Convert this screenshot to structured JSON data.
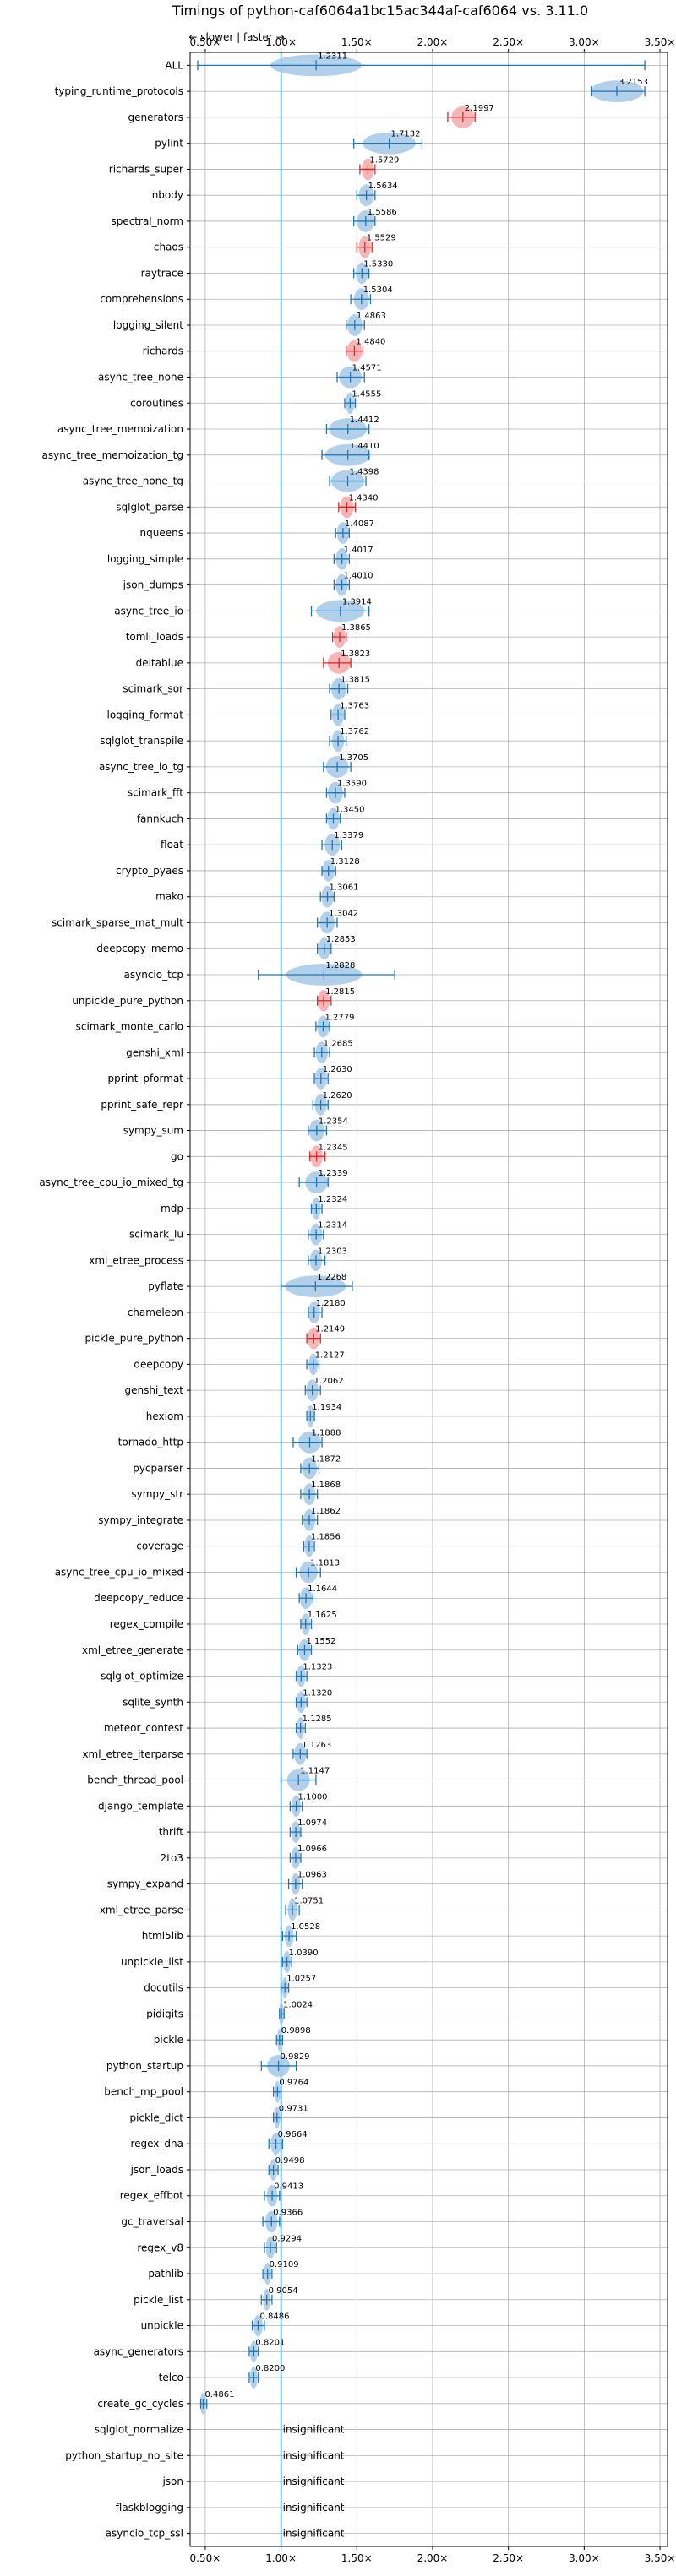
{
  "chart_data": {
    "type": "violin",
    "title": "Timings of python-caf6064a1bc15ac344af-caf6064 vs. 3.11.0",
    "annotation": "← slower | faster →",
    "xlim": [
      0.4,
      3.55
    ],
    "x_ticks": [
      0.5,
      1.0,
      1.5,
      2.0,
      2.5,
      3.0,
      3.5
    ],
    "x_tick_labels": [
      "0.50×",
      "1.00×",
      "1.50×",
      "2.00×",
      "2.50×",
      "3.00×",
      "3.50×"
    ],
    "reference_line": 1.0,
    "grid": true,
    "colors": {
      "faster": "#1f77b4",
      "faster_fill": "#a6c8e8",
      "slower": "#d62728",
      "slower_fill": "#f4a9aa"
    },
    "insignificant_label": "insignificant",
    "benchmarks": [
      {
        "name": "ALL",
        "value": 1.2311,
        "min": 0.45,
        "max": 3.4,
        "spread": 0.6,
        "color": "faster"
      },
      {
        "name": "typing_runtime_protocols",
        "value": 3.2153,
        "min": 3.05,
        "max": 3.4,
        "spread": 0.35,
        "color": "faster"
      },
      {
        "name": "generators",
        "value": 2.1997,
        "min": 2.1,
        "max": 2.28,
        "spread": 0.15,
        "color": "slower"
      },
      {
        "name": "pylint",
        "value": 1.7132,
        "min": 1.48,
        "max": 1.93,
        "spread": 0.35,
        "color": "faster"
      },
      {
        "name": "richards_super",
        "value": 1.5729,
        "min": 1.52,
        "max": 1.62,
        "spread": 0.08,
        "color": "slower"
      },
      {
        "name": "nbody",
        "value": 1.5634,
        "min": 1.5,
        "max": 1.62,
        "spread": 0.1,
        "color": "faster"
      },
      {
        "name": "spectral_norm",
        "value": 1.5586,
        "min": 1.48,
        "max": 1.62,
        "spread": 0.12,
        "color": "faster"
      },
      {
        "name": "chaos",
        "value": 1.5529,
        "min": 1.5,
        "max": 1.6,
        "spread": 0.08,
        "color": "slower"
      },
      {
        "name": "raytrace",
        "value": 1.533,
        "min": 1.48,
        "max": 1.58,
        "spread": 0.08,
        "color": "faster"
      },
      {
        "name": "comprehensions",
        "value": 1.5304,
        "min": 1.46,
        "max": 1.59,
        "spread": 0.1,
        "color": "faster"
      },
      {
        "name": "logging_silent",
        "value": 1.4863,
        "min": 1.43,
        "max": 1.55,
        "spread": 0.1,
        "color": "faster"
      },
      {
        "name": "richards",
        "value": 1.484,
        "min": 1.43,
        "max": 1.54,
        "spread": 0.1,
        "color": "slower"
      },
      {
        "name": "async_tree_none",
        "value": 1.4571,
        "min": 1.37,
        "max": 1.55,
        "spread": 0.15,
        "color": "faster"
      },
      {
        "name": "coroutines",
        "value": 1.4555,
        "min": 1.42,
        "max": 1.49,
        "spread": 0.06,
        "color": "faster"
      },
      {
        "name": "async_tree_memoization",
        "value": 1.4412,
        "min": 1.3,
        "max": 1.58,
        "spread": 0.25,
        "color": "faster"
      },
      {
        "name": "async_tree_memoization_tg",
        "value": 1.441,
        "min": 1.27,
        "max": 1.58,
        "spread": 0.3,
        "color": "faster"
      },
      {
        "name": "async_tree_none_tg",
        "value": 1.4398,
        "min": 1.32,
        "max": 1.56,
        "spread": 0.22,
        "color": "faster"
      },
      {
        "name": "sqlglot_parse",
        "value": 1.434,
        "min": 1.38,
        "max": 1.49,
        "spread": 0.09,
        "color": "slower"
      },
      {
        "name": "nqueens",
        "value": 1.4087,
        "min": 1.36,
        "max": 1.45,
        "spread": 0.08,
        "color": "faster"
      },
      {
        "name": "logging_simple",
        "value": 1.4017,
        "min": 1.35,
        "max": 1.45,
        "spread": 0.08,
        "color": "faster"
      },
      {
        "name": "json_dumps",
        "value": 1.401,
        "min": 1.35,
        "max": 1.45,
        "spread": 0.08,
        "color": "faster"
      },
      {
        "name": "async_tree_io",
        "value": 1.3914,
        "min": 1.2,
        "max": 1.58,
        "spread": 0.32,
        "color": "faster"
      },
      {
        "name": "tomli_loads",
        "value": 1.3865,
        "min": 1.34,
        "max": 1.43,
        "spread": 0.08,
        "color": "slower"
      },
      {
        "name": "deltablue",
        "value": 1.3823,
        "min": 1.28,
        "max": 1.46,
        "spread": 0.15,
        "color": "slower"
      },
      {
        "name": "scimark_sor",
        "value": 1.3815,
        "min": 1.32,
        "max": 1.44,
        "spread": 0.1,
        "color": "faster"
      },
      {
        "name": "logging_format",
        "value": 1.3763,
        "min": 1.33,
        "max": 1.42,
        "spread": 0.08,
        "color": "faster"
      },
      {
        "name": "sqlglot_transpile",
        "value": 1.3762,
        "min": 1.32,
        "max": 1.43,
        "spread": 0.08,
        "color": "faster"
      },
      {
        "name": "async_tree_io_tg",
        "value": 1.3705,
        "min": 1.28,
        "max": 1.46,
        "spread": 0.15,
        "color": "faster"
      },
      {
        "name": "scimark_fft",
        "value": 1.359,
        "min": 1.3,
        "max": 1.42,
        "spread": 0.1,
        "color": "faster"
      },
      {
        "name": "fannkuch",
        "value": 1.345,
        "min": 1.3,
        "max": 1.39,
        "spread": 0.08,
        "color": "faster"
      },
      {
        "name": "float",
        "value": 1.3379,
        "min": 1.27,
        "max": 1.4,
        "spread": 0.1,
        "color": "faster"
      },
      {
        "name": "crypto_pyaes",
        "value": 1.3128,
        "min": 1.27,
        "max": 1.36,
        "spread": 0.08,
        "color": "faster"
      },
      {
        "name": "mako",
        "value": 1.3061,
        "min": 1.26,
        "max": 1.35,
        "spread": 0.08,
        "color": "faster"
      },
      {
        "name": "scimark_sparse_mat_mult",
        "value": 1.3042,
        "min": 1.24,
        "max": 1.37,
        "spread": 0.1,
        "color": "faster"
      },
      {
        "name": "deepcopy_memo",
        "value": 1.2853,
        "min": 1.24,
        "max": 1.33,
        "spread": 0.08,
        "color": "faster"
      },
      {
        "name": "asyncio_tcp",
        "value": 1.2828,
        "min": 0.85,
        "max": 1.75,
        "spread": 0.5,
        "color": "faster"
      },
      {
        "name": "unpickle_pure_python",
        "value": 1.2815,
        "min": 1.24,
        "max": 1.33,
        "spread": 0.08,
        "color": "slower"
      },
      {
        "name": "scimark_monte_carlo",
        "value": 1.2779,
        "min": 1.23,
        "max": 1.32,
        "spread": 0.08,
        "color": "faster"
      },
      {
        "name": "genshi_xml",
        "value": 1.2685,
        "min": 1.22,
        "max": 1.32,
        "spread": 0.08,
        "color": "faster"
      },
      {
        "name": "pprint_pformat",
        "value": 1.263,
        "min": 1.22,
        "max": 1.31,
        "spread": 0.08,
        "color": "faster"
      },
      {
        "name": "pprint_safe_repr",
        "value": 1.262,
        "min": 1.21,
        "max": 1.31,
        "spread": 0.08,
        "color": "faster"
      },
      {
        "name": "sympy_sum",
        "value": 1.2354,
        "min": 1.18,
        "max": 1.3,
        "spread": 0.1,
        "color": "faster"
      },
      {
        "name": "go",
        "value": 1.2345,
        "min": 1.19,
        "max": 1.29,
        "spread": 0.08,
        "color": "slower"
      },
      {
        "name": "async_tree_cpu_io_mixed_tg",
        "value": 1.2339,
        "min": 1.12,
        "max": 1.31,
        "spread": 0.15,
        "color": "faster"
      },
      {
        "name": "mdp",
        "value": 1.2324,
        "min": 1.2,
        "max": 1.27,
        "spread": 0.06,
        "color": "faster"
      },
      {
        "name": "scimark_lu",
        "value": 1.2314,
        "min": 1.18,
        "max": 1.28,
        "spread": 0.08,
        "color": "faster"
      },
      {
        "name": "xml_etree_process",
        "value": 1.2303,
        "min": 1.18,
        "max": 1.29,
        "spread": 0.08,
        "color": "faster"
      },
      {
        "name": "pyflate",
        "value": 1.2268,
        "min": 1.0,
        "max": 1.47,
        "spread": 0.4,
        "color": "faster"
      },
      {
        "name": "chameleon",
        "value": 1.218,
        "min": 1.18,
        "max": 1.27,
        "spread": 0.08,
        "color": "faster"
      },
      {
        "name": "pickle_pure_python",
        "value": 1.2149,
        "min": 1.17,
        "max": 1.26,
        "spread": 0.08,
        "color": "slower"
      },
      {
        "name": "deepcopy",
        "value": 1.2127,
        "min": 1.17,
        "max": 1.25,
        "spread": 0.06,
        "color": "faster"
      },
      {
        "name": "genshi_text",
        "value": 1.2062,
        "min": 1.16,
        "max": 1.26,
        "spread": 0.08,
        "color": "faster"
      },
      {
        "name": "hexiom",
        "value": 1.1934,
        "min": 1.17,
        "max": 1.22,
        "spread": 0.05,
        "color": "faster"
      },
      {
        "name": "tornado_http",
        "value": 1.1888,
        "min": 1.08,
        "max": 1.27,
        "spread": 0.15,
        "color": "faster"
      },
      {
        "name": "pycparser",
        "value": 1.1872,
        "min": 1.13,
        "max": 1.25,
        "spread": 0.1,
        "color": "faster"
      },
      {
        "name": "sympy_str",
        "value": 1.1868,
        "min": 1.13,
        "max": 1.24,
        "spread": 0.08,
        "color": "faster"
      },
      {
        "name": "sympy_integrate",
        "value": 1.1862,
        "min": 1.14,
        "max": 1.24,
        "spread": 0.08,
        "color": "faster"
      },
      {
        "name": "coverage",
        "value": 1.1856,
        "min": 1.15,
        "max": 1.22,
        "spread": 0.06,
        "color": "faster"
      },
      {
        "name": "async_tree_cpu_io_mixed",
        "value": 1.1813,
        "min": 1.1,
        "max": 1.26,
        "spread": 0.12,
        "color": "faster"
      },
      {
        "name": "deepcopy_reduce",
        "value": 1.1644,
        "min": 1.12,
        "max": 1.21,
        "spread": 0.08,
        "color": "faster"
      },
      {
        "name": "regex_compile",
        "value": 1.1625,
        "min": 1.13,
        "max": 1.2,
        "spread": 0.06,
        "color": "faster"
      },
      {
        "name": "xml_etree_generate",
        "value": 1.1552,
        "min": 1.11,
        "max": 1.2,
        "spread": 0.08,
        "color": "faster"
      },
      {
        "name": "sqlglot_optimize",
        "value": 1.1323,
        "min": 1.1,
        "max": 1.17,
        "spread": 0.06,
        "color": "faster"
      },
      {
        "name": "sqlite_synth",
        "value": 1.132,
        "min": 1.1,
        "max": 1.17,
        "spread": 0.06,
        "color": "faster"
      },
      {
        "name": "meteor_contest",
        "value": 1.1285,
        "min": 1.1,
        "max": 1.16,
        "spread": 0.05,
        "color": "faster"
      },
      {
        "name": "xml_etree_iterparse",
        "value": 1.1263,
        "min": 1.08,
        "max": 1.17,
        "spread": 0.08,
        "color": "faster"
      },
      {
        "name": "bench_thread_pool",
        "value": 1.1147,
        "min": 1.0,
        "max": 1.23,
        "spread": 0.15,
        "color": "faster"
      },
      {
        "name": "django_template",
        "value": 1.1,
        "min": 1.06,
        "max": 1.14,
        "spread": 0.06,
        "color": "faster"
      },
      {
        "name": "thrift",
        "value": 1.0974,
        "min": 1.06,
        "max": 1.13,
        "spread": 0.06,
        "color": "faster"
      },
      {
        "name": "2to3",
        "value": 1.0966,
        "min": 1.06,
        "max": 1.13,
        "spread": 0.06,
        "color": "faster"
      },
      {
        "name": "sympy_expand",
        "value": 1.0963,
        "min": 1.05,
        "max": 1.14,
        "spread": 0.06,
        "color": "faster"
      },
      {
        "name": "xml_etree_parse",
        "value": 1.0751,
        "min": 1.03,
        "max": 1.12,
        "spread": 0.06,
        "color": "faster"
      },
      {
        "name": "html5lib",
        "value": 1.0528,
        "min": 1.01,
        "max": 1.1,
        "spread": 0.06,
        "color": "faster"
      },
      {
        "name": "unpickle_list",
        "value": 1.039,
        "min": 1.01,
        "max": 1.07,
        "spread": 0.05,
        "color": "faster"
      },
      {
        "name": "docutils",
        "value": 1.0257,
        "min": 1.0,
        "max": 1.05,
        "spread": 0.04,
        "color": "faster"
      },
      {
        "name": "pidigits",
        "value": 1.0024,
        "min": 0.99,
        "max": 1.02,
        "spread": 0.03,
        "color": "faster"
      },
      {
        "name": "pickle",
        "value": 0.9898,
        "min": 0.97,
        "max": 1.01,
        "spread": 0.03,
        "color": "faster"
      },
      {
        "name": "python_startup",
        "value": 0.9829,
        "min": 0.87,
        "max": 1.1,
        "spread": 0.15,
        "color": "faster"
      },
      {
        "name": "bench_mp_pool",
        "value": 0.9764,
        "min": 0.95,
        "max": 1.0,
        "spread": 0.04,
        "color": "faster"
      },
      {
        "name": "pickle_dict",
        "value": 0.9731,
        "min": 0.95,
        "max": 1.0,
        "spread": 0.04,
        "color": "faster"
      },
      {
        "name": "regex_dna",
        "value": 0.9664,
        "min": 0.92,
        "max": 1.01,
        "spread": 0.07,
        "color": "faster"
      },
      {
        "name": "json_loads",
        "value": 0.9498,
        "min": 0.92,
        "max": 0.98,
        "spread": 0.05,
        "color": "faster"
      },
      {
        "name": "regex_effbot",
        "value": 0.9413,
        "min": 0.89,
        "max": 0.99,
        "spread": 0.07,
        "color": "faster"
      },
      {
        "name": "gc_traversal",
        "value": 0.9366,
        "min": 0.88,
        "max": 0.99,
        "spread": 0.08,
        "color": "faster"
      },
      {
        "name": "regex_v8",
        "value": 0.9294,
        "min": 0.89,
        "max": 0.97,
        "spread": 0.06,
        "color": "faster"
      },
      {
        "name": "pathlib",
        "value": 0.9109,
        "min": 0.88,
        "max": 0.94,
        "spread": 0.05,
        "color": "faster"
      },
      {
        "name": "pickle_list",
        "value": 0.9054,
        "min": 0.87,
        "max": 0.94,
        "spread": 0.05,
        "color": "faster"
      },
      {
        "name": "unpickle",
        "value": 0.8486,
        "min": 0.81,
        "max": 0.89,
        "spread": 0.06,
        "color": "faster"
      },
      {
        "name": "async_generators",
        "value": 0.8201,
        "min": 0.79,
        "max": 0.85,
        "spread": 0.05,
        "color": "faster"
      },
      {
        "name": "telco",
        "value": 0.82,
        "min": 0.79,
        "max": 0.85,
        "spread": 0.05,
        "color": "faster"
      },
      {
        "name": "create_gc_cycles",
        "value": 0.4861,
        "min": 0.47,
        "max": 0.51,
        "spread": 0.04,
        "color": "faster"
      },
      {
        "name": "sqlglot_normalize",
        "value": null,
        "color": "faster",
        "insignificant": true
      },
      {
        "name": "python_startup_no_site",
        "value": null,
        "color": "faster",
        "insignificant": true
      },
      {
        "name": "json",
        "value": null,
        "color": "faster",
        "insignificant": true
      },
      {
        "name": "flaskblogging",
        "value": null,
        "color": "faster",
        "insignificant": true
      },
      {
        "name": "asyncio_tcp_ssl",
        "value": null,
        "color": "faster",
        "insignificant": true
      }
    ]
  }
}
